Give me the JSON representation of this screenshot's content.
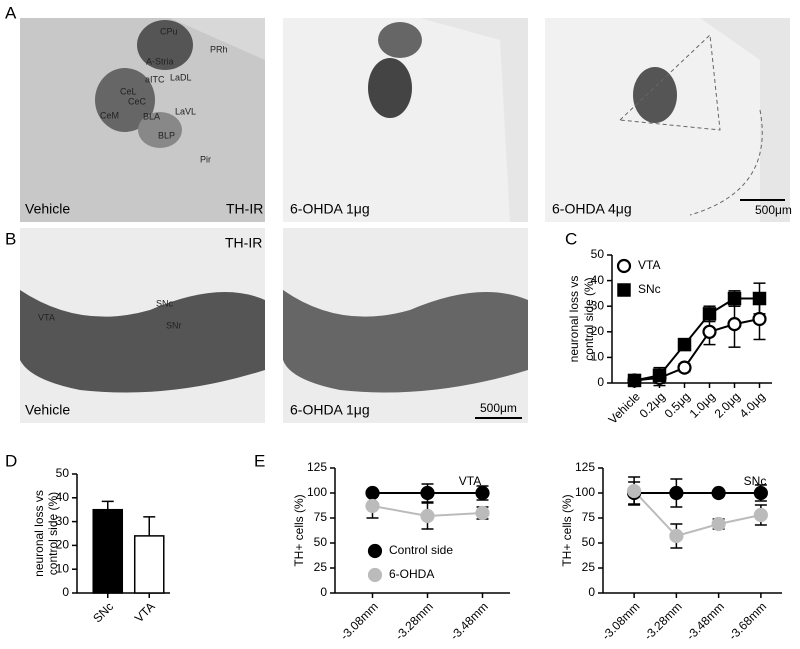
{
  "panel_labels": [
    "A",
    "B",
    "C",
    "D",
    "E"
  ],
  "images": [
    {
      "labels": [
        "Vehicle",
        "TH-IR",
        "CPu",
        "A-Stria",
        "PRh",
        "aITC",
        "LaDL",
        "CeL",
        "CeC",
        "LaVL",
        "CeM",
        "BLA",
        "BLP",
        "Pir"
      ]
    },
    {
      "labels": [
        "6-OHDA 1μg"
      ]
    },
    {
      "labels": [
        "6-OHDA 4μg",
        "500μm"
      ]
    },
    {
      "labels": [
        "TH-IR",
        "Vehicle",
        "VTA",
        "SNc",
        "SNr"
      ]
    },
    {
      "labels": [
        "6-OHDA 1μg",
        "500μm"
      ]
    }
  ],
  "chart_data": [
    {
      "type": "line",
      "ylabel": [
        "neuronal loss vs",
        "control side (%)"
      ],
      "categories": [
        "Vehicle",
        "0.2μg",
        "0.5μg",
        "1.0μg",
        "2.0μg",
        "4.0μg"
      ],
      "series": [
        {
          "name": "VTA",
          "color": "#ffffff",
          "marker": "circle",
          "values": [
            1,
            2,
            6,
            20,
            23,
            25
          ],
          "errors": [
            2,
            3,
            1.5,
            5,
            9,
            8
          ]
        },
        {
          "name": "SNc",
          "color": "#000000",
          "marker": "square",
          "values": [
            1,
            3,
            15,
            27,
            33,
            33
          ],
          "errors": [
            1.5,
            3,
            2,
            3,
            3,
            6
          ]
        }
      ],
      "ylim": [
        0,
        50
      ],
      "yticks": [
        0,
        10,
        20,
        30,
        40,
        50
      ]
    },
    {
      "type": "bar",
      "ylabel": [
        "neuronal loss vs",
        "control side (%)"
      ],
      "categories": [
        "SNc",
        "VTA"
      ],
      "values": [
        35,
        24
      ],
      "errors": [
        3.5,
        8
      ],
      "colors": [
        "#000000",
        "#ffffff"
      ],
      "ylim": [
        0,
        50
      ],
      "yticks": [
        0,
        10,
        20,
        30,
        40,
        50
      ]
    },
    {
      "type": "line",
      "title": "VTA",
      "ylabel": [
        "TH+ cells (%)"
      ],
      "categories": [
        "-3.08mm",
        "-3.28mm",
        "-3.48mm"
      ],
      "series": [
        {
          "name": "Control side",
          "color": "#000000",
          "marker": "circle",
          "values": [
            100,
            100,
            100
          ],
          "errors": [
            0,
            9,
            7
          ]
        },
        {
          "name": "6-OHDA",
          "color": "#bbbbbb",
          "marker": "circle",
          "values": [
            87,
            77,
            80
          ],
          "errors": [
            12,
            13,
            6
          ]
        }
      ],
      "ylim": [
        0,
        125
      ],
      "yticks": [
        0,
        25,
        50,
        75,
        100,
        125
      ]
    },
    {
      "type": "line",
      "title": "SNc",
      "ylabel": [
        "TH+ cells (%)"
      ],
      "categories": [
        "-3.08mm",
        "-3.28mm",
        "-3.48mm",
        "-3.68mm"
      ],
      "series": [
        {
          "name": "Control side",
          "color": "#000000",
          "marker": "circle",
          "values": [
            100,
            100,
            100,
            100
          ],
          "errors": [
            11,
            14,
            0,
            8
          ]
        },
        {
          "name": "6-OHDA",
          "color": "#bbbbbb",
          "marker": "circle",
          "values": [
            102,
            57,
            69,
            78
          ],
          "errors": [
            14,
            12,
            5,
            10
          ]
        }
      ],
      "ylim": [
        0,
        125
      ],
      "yticks": [
        0,
        25,
        50,
        75,
        100,
        125
      ]
    }
  ]
}
